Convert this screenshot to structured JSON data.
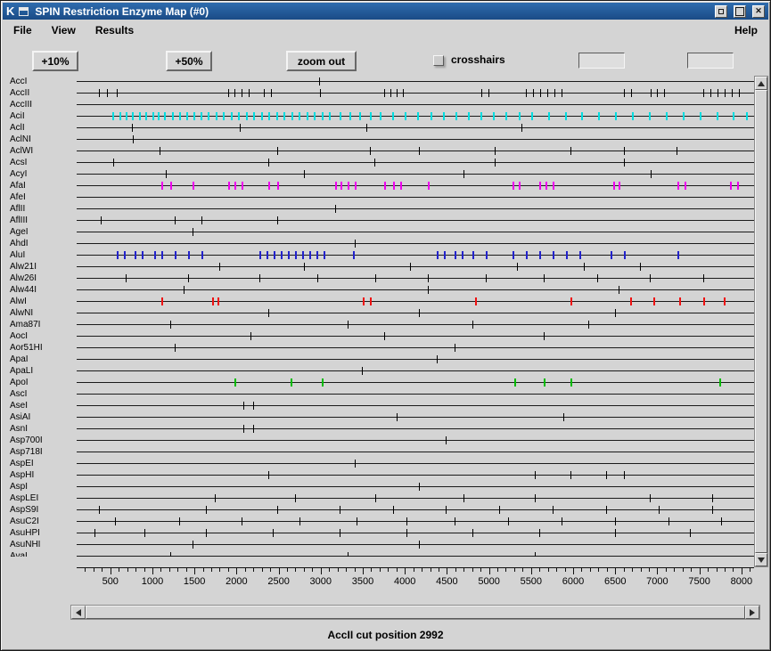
{
  "window": {
    "title": "SPIN Restriction Enzyme Map (#0)",
    "icon_letter": "K"
  },
  "menubar": {
    "items": [
      "File",
      "View",
      "Results"
    ],
    "help": "Help"
  },
  "toolbar": {
    "zoom_in_small": "+10%",
    "zoom_in_large": "+50%",
    "zoom_out": "zoom out",
    "crosshairs_label": "crosshairs",
    "crosshairs_checked": false,
    "position_field_1": "",
    "position_field_2": ""
  },
  "statusbar": {
    "text": "AccII cut position 2992"
  },
  "chart_data": {
    "type": "restriction-map",
    "title": "SPIN Restriction Enzyme Map (#0)",
    "x_axis": {
      "min": 100,
      "max": 8150,
      "minor_tick_step": 100,
      "major_ticks": [
        500,
        1000,
        1500,
        2000,
        2500,
        3000,
        3500,
        4000,
        4500,
        5000,
        5500,
        6000,
        6500,
        7000,
        7500,
        8000
      ]
    },
    "tick_default_color": "#000000",
    "enzymes": [
      {
        "name": "AccI",
        "cuts": [
          2980
        ]
      },
      {
        "name": "AccII",
        "cuts": [
          370,
          455,
          580,
          1900,
          1975,
          2060,
          2145,
          2325,
          2410,
          2992,
          3750,
          3825,
          3900,
          3980,
          4910,
          4995,
          5440,
          5525,
          5610,
          5690,
          5775,
          5860,
          6600,
          6685,
          6920,
          7000,
          7085,
          7550,
          7635,
          7720,
          7805,
          7890,
          7975
        ]
      },
      {
        "name": "AccIII",
        "cuts": []
      },
      {
        "name": "AciI",
        "color": "#00dde0",
        "cuts": [
          520,
          610,
          680,
          760,
          840,
          920,
          1000,
          1060,
          1140,
          1230,
          1320,
          1400,
          1490,
          1570,
          1660,
          1750,
          1840,
          1930,
          2020,
          2110,
          2200,
          2290,
          2380,
          2470,
          2560,
          2650,
          2740,
          2830,
          2920,
          3010,
          3100,
          3220,
          3340,
          3460,
          3580,
          3700,
          3850,
          4000,
          4150,
          4300,
          4450,
          4600,
          4750,
          4900,
          5050,
          5200,
          5350,
          5500,
          5700,
          5900,
          6100,
          6300,
          6500,
          6700,
          6900,
          7100,
          7300,
          7500,
          7700,
          7900,
          8050
        ]
      },
      {
        "name": "AclI",
        "cuts": [
          760,
          2040,
          3540,
          5390
        ]
      },
      {
        "name": "AclNI",
        "cuts": [
          770
        ]
      },
      {
        "name": "AclWI",
        "cuts": [
          1090,
          2480,
          3590,
          4170,
          5070,
          5970,
          6600,
          7230
        ]
      },
      {
        "name": "AcsI",
        "cuts": [
          530,
          2380,
          3640,
          5070,
          6600
        ]
      },
      {
        "name": "AcyI",
        "cuts": [
          1160,
          2800,
          4700,
          6920
        ]
      },
      {
        "name": "AfaI",
        "color": "#ee00ee",
        "cuts": [
          1110,
          1215,
          1480,
          1900,
          1975,
          2060,
          2375,
          2480,
          3170,
          3240,
          3325,
          3410,
          3750,
          3855,
          3940,
          4275,
          5280,
          5355,
          5600,
          5670,
          5755,
          6475,
          6545,
          7235,
          7320,
          7865,
          7950
        ]
      },
      {
        "name": "AfeI",
        "cuts": []
      },
      {
        "name": "AflII",
        "cuts": [
          3170
        ]
      },
      {
        "name": "AflIII",
        "cuts": [
          390,
          1270,
          1580,
          2480
        ]
      },
      {
        "name": "AgeI",
        "cuts": [
          1480
        ]
      },
      {
        "name": "AhdI",
        "cuts": [
          3410
        ]
      },
      {
        "name": "AluI",
        "color": "#2222cc",
        "cuts": [
          580,
          665,
          790,
          875,
          1025,
          1110,
          1265,
          1425,
          1585,
          2270,
          2355,
          2440,
          2525,
          2610,
          2695,
          2780,
          2860,
          2945,
          3030,
          3380,
          4380,
          4465,
          4595,
          4680,
          4805,
          4965,
          5280,
          5440,
          5600,
          5755,
          5915,
          6070,
          6440,
          6600,
          7235
        ]
      },
      {
        "name": "Alw21I",
        "cuts": [
          1795,
          2800,
          4065,
          5335,
          6125,
          6790
        ]
      },
      {
        "name": "Alw26I",
        "cuts": [
          685,
          1425,
          2270,
          2955,
          3645,
          4275,
          4965,
          5650,
          6285,
          6915,
          7550
        ]
      },
      {
        "name": "Alw44I",
        "cuts": [
          1375,
          4275,
          6545
        ]
      },
      {
        "name": "AlwI",
        "color": "#ee1111",
        "cuts": [
          1110,
          1710,
          1775,
          3505,
          3590,
          4835,
          5965,
          6675,
          6950,
          7255,
          7550,
          7785
        ]
      },
      {
        "name": "AlwNI",
        "cuts": [
          2375,
          4170,
          6495
        ]
      },
      {
        "name": "Ama87I",
        "cuts": [
          1215,
          3325,
          4805,
          6175
        ]
      },
      {
        "name": "AocI",
        "cuts": [
          2165,
          3750,
          5650
        ]
      },
      {
        "name": "Aor51HI",
        "cuts": [
          1265,
          4595
        ]
      },
      {
        "name": "ApaI",
        "cuts": [
          4380
        ]
      },
      {
        "name": "ApaLI",
        "cuts": [
          3485
        ]
      },
      {
        "name": "ApoI",
        "color": "#00bb00",
        "cuts": [
          1975,
          2640,
          3010,
          5300,
          5650,
          5965,
          7740
        ]
      },
      {
        "name": "AscI",
        "cuts": []
      },
      {
        "name": "AseI",
        "cuts": [
          2080,
          2195
        ]
      },
      {
        "name": "AsiAI",
        "cuts": [
          3905,
          5880
        ]
      },
      {
        "name": "AsnI",
        "cuts": [
          2080,
          2195
        ]
      },
      {
        "name": "Asp700I",
        "cuts": [
          4490
        ]
      },
      {
        "name": "Asp718I",
        "cuts": []
      },
      {
        "name": "AspEI",
        "cuts": [
          3410
        ]
      },
      {
        "name": "AspHI",
        "cuts": [
          2375,
          5545,
          5965,
          6390,
          6600
        ]
      },
      {
        "name": "AspI",
        "cuts": [
          4170
        ]
      },
      {
        "name": "AspLEI",
        "cuts": [
          1740,
          2695,
          3645,
          4700,
          5545,
          6915,
          7655
        ]
      },
      {
        "name": "AspS9I",
        "cuts": [
          370,
          1635,
          2480,
          3220,
          3855,
          4490,
          5120,
          5755,
          6390,
          7020,
          7655
        ]
      },
      {
        "name": "AsuC2I",
        "cuts": [
          560,
          1320,
          2060,
          2745,
          3430,
          4015,
          4595,
          5225,
          5860,
          6495,
          7130,
          7760
        ]
      },
      {
        "name": "AsuHPI",
        "cuts": [
          315,
          900,
          1635,
          2430,
          3220,
          4015,
          4805,
          5600,
          6495,
          7390
        ]
      },
      {
        "name": "AsuNHI",
        "cuts": [
          1480,
          4170
        ]
      },
      {
        "name": "AvaI",
        "cuts": [
          1215,
          3325,
          5545
        ]
      }
    ]
  }
}
